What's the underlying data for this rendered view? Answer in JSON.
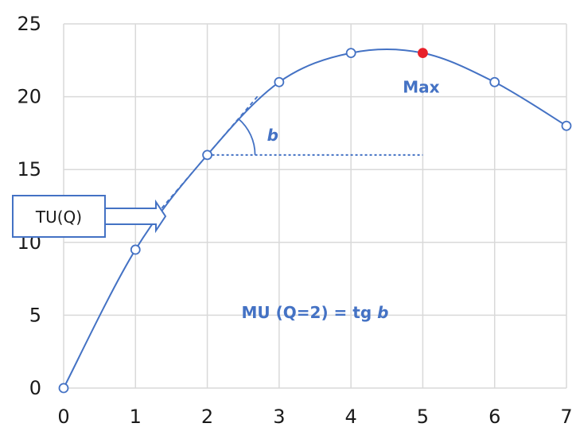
{
  "chart_data": {
    "type": "line",
    "title": "",
    "xlabel": "",
    "ylabel": "",
    "xlim": [
      0,
      7
    ],
    "ylim": [
      0,
      25
    ],
    "x_ticks": [
      "0",
      "1",
      "2",
      "3",
      "4",
      "5",
      "6",
      "7"
    ],
    "y_ticks": [
      "0",
      "5",
      "10",
      "15",
      "20",
      "25"
    ],
    "grid": true,
    "series": [
      {
        "x": [
          0,
          1,
          2,
          3,
          4,
          5,
          6,
          7
        ],
        "values": [
          0,
          9.5,
          16,
          21,
          23,
          23,
          21,
          18
        ],
        "max_point": {
          "x": 5,
          "y": 23
        }
      }
    ],
    "annotations": {
      "max_label": "Max",
      "angle_label": "b",
      "tu_label": "TU(Q)",
      "mu_formula_prefix": "MU (Q=2) = tg ",
      "mu_formula_var": "b"
    },
    "colors": {
      "curve": "#4472c4",
      "max_marker": "#e8202a",
      "annotation_text": "#4472c4",
      "grid": "#d9d9d9"
    }
  }
}
